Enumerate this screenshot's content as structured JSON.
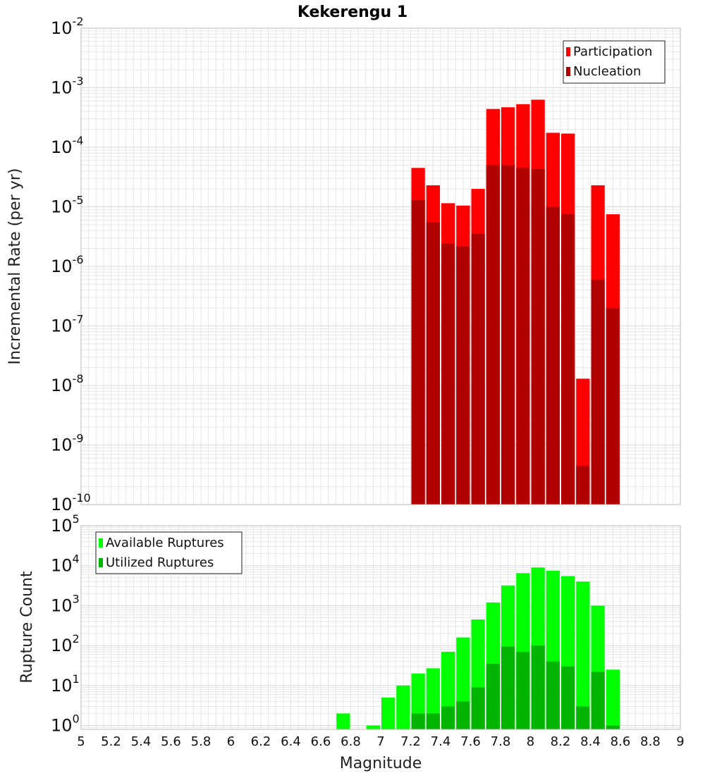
{
  "chart_data": [
    {
      "type": "bar",
      "title": "Kekerengu 1",
      "xlabel": "",
      "ylabel": "Incremental Rate (per yr)",
      "yscale": "log",
      "ylim": [
        1e-10,
        0.01
      ],
      "xlim": [
        5,
        9
      ],
      "bar_width": 0.1,
      "grid": true,
      "legend_position": "top-right",
      "x": [
        7.25,
        7.35,
        7.45,
        7.55,
        7.65,
        7.75,
        7.85,
        7.95,
        8.05,
        8.15,
        8.25,
        8.35,
        8.45,
        8.55
      ],
      "series": [
        {
          "name": "Participation",
          "color": "#ff0000",
          "values": [
            4.5e-05,
            2.3e-05,
            1.15e-05,
            1.05e-05,
            2e-05,
            0.00044,
            0.00047,
            0.00053,
            0.00063,
            0.000175,
            0.00017,
            1.3e-08,
            2.3e-05,
            7.5e-06
          ]
        },
        {
          "name": "Nucleation",
          "color": "#b00000",
          "values": [
            1.3e-05,
            5.5e-06,
            2.4e-06,
            2.2e-06,
            3.5e-06,
            5e-05,
            5e-05,
            4.5e-05,
            4.3e-05,
            1e-05,
            7.5e-06,
            4.5e-10,
            6e-07,
            2e-07
          ]
        }
      ]
    },
    {
      "type": "bar",
      "title": "",
      "xlabel": "Magnitude",
      "ylabel": "Rupture Count",
      "yscale": "log",
      "ylim": [
        0.8,
        100000
      ],
      "xlim": [
        5,
        9
      ],
      "bar_width": 0.1,
      "grid": true,
      "legend_position": "top-left",
      "x": [
        6.75,
        6.95,
        7.05,
        7.15,
        7.25,
        7.35,
        7.45,
        7.55,
        7.65,
        7.75,
        7.85,
        7.95,
        8.05,
        8.15,
        8.25,
        8.35,
        8.45,
        8.55
      ],
      "series": [
        {
          "name": "Available Ruptures",
          "color": "#00ff00",
          "values": [
            2,
            1,
            5,
            10,
            20,
            27,
            70,
            160,
            450,
            1200,
            3200,
            6500,
            9000,
            7500,
            5500,
            4000,
            1000,
            25
          ]
        },
        {
          "name": "Utilized Ruptures",
          "color": "#00b400",
          "values": [
            null,
            null,
            null,
            null,
            2,
            2,
            3,
            4,
            9,
            35,
            95,
            70,
            100,
            40,
            30,
            3,
            22,
            1
          ]
        }
      ]
    }
  ],
  "x_tick_labels": [
    "5",
    "5.2",
    "5.4",
    "5.6",
    "5.8",
    "6",
    "6.2",
    "6.4",
    "6.6",
    "6.8",
    "7",
    "7.2",
    "7.4",
    "7.6",
    "7.8",
    "8",
    "8.2",
    "8.4",
    "8.6",
    "8.8",
    "9"
  ],
  "colors": {
    "participation": "#ff0000",
    "nucleation": "#b00000",
    "available": "#00ff00",
    "utilized": "#00b400",
    "grid": "#e6e6e6",
    "frame": "#bbbbbb"
  }
}
